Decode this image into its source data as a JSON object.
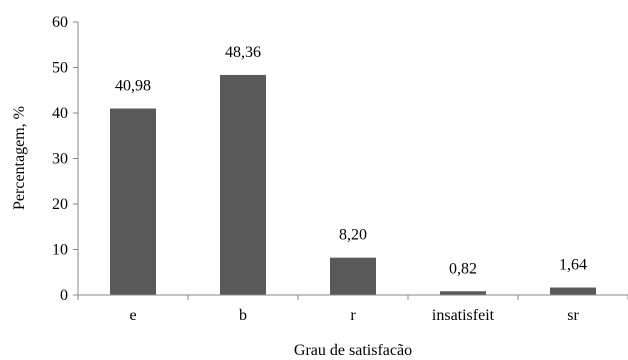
{
  "chart_data": {
    "type": "bar",
    "categories": [
      "e",
      "b",
      "r",
      "insatisfeit",
      "sr"
    ],
    "values": [
      40.98,
      48.36,
      8.2,
      0.82,
      1.64
    ],
    "data_labels": [
      "40,98",
      "48,36",
      "8,20",
      "0,82",
      "1,64"
    ],
    "title": "",
    "xlabel": "Grau de satisfacão",
    "ylabel": "Percentagem, %",
    "ylim": [
      0,
      60
    ],
    "yticks": [
      0,
      10,
      20,
      30,
      40,
      50,
      60
    ],
    "grid": false,
    "legend": "none",
    "bar_color": "#595959",
    "axis_color": "#878787"
  }
}
